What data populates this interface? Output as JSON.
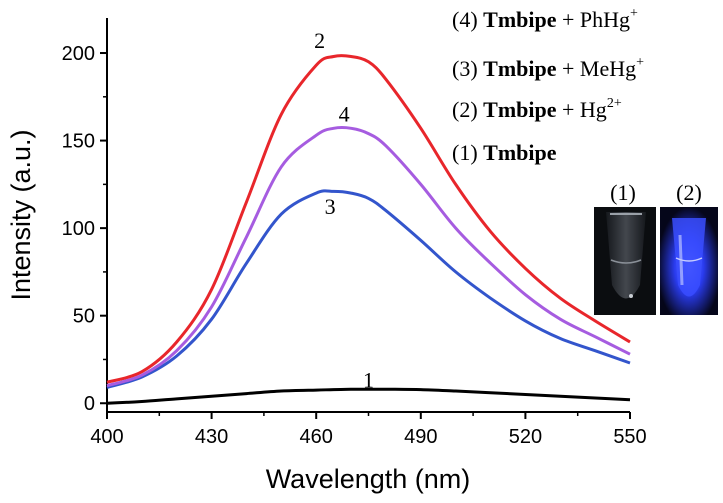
{
  "chart_data": {
    "type": "line",
    "title": "",
    "xlabel": "Wavelength (nm)",
    "ylabel": "Intensity (a.u.)",
    "xlim": [
      400,
      550
    ],
    "ylim": [
      -5,
      220
    ],
    "xticks": [
      400,
      430,
      460,
      490,
      520,
      550
    ],
    "yticks": [
      0,
      50,
      100,
      150,
      200
    ],
    "grid": false,
    "legend_position": "top-right",
    "x": [
      400,
      410,
      420,
      430,
      440,
      450,
      460,
      465,
      470,
      475,
      480,
      490,
      500,
      510,
      520,
      530,
      540,
      550
    ],
    "series": [
      {
        "name": "1",
        "legend": "Tmbipe",
        "color": "#000000",
        "values": [
          0,
          1,
          2.5,
          4,
          5.5,
          7,
          7.5,
          7.8,
          8,
          8,
          8,
          7.8,
          7,
          6,
          5,
          4,
          3,
          2
        ]
      },
      {
        "name": "2",
        "legend": "Tmbipe + Hg2+",
        "color": "#e8262b",
        "values": [
          12,
          18,
          35,
          65,
          115,
          165,
          193,
          198,
          198,
          195,
          185,
          157,
          125,
          98,
          77,
          60,
          47,
          35
        ]
      },
      {
        "name": "3",
        "legend": "Tmbipe + MeHg+",
        "color": "#3355cc",
        "values": [
          9,
          15,
          27,
          48,
          80,
          108,
          120,
          121,
          120,
          117,
          110,
          93,
          75,
          60,
          47,
          37,
          30,
          23
        ]
      },
      {
        "name": "4",
        "legend": "Tmbipe + PhHg+",
        "color": "#a65ce0",
        "values": [
          10,
          16,
          30,
          55,
          95,
          135,
          153,
          157,
          157,
          154,
          147,
          125,
          100,
          80,
          62,
          48,
          38,
          28
        ]
      }
    ],
    "curve_labels": [
      {
        "text": "1",
        "x": 475,
        "y": 9
      },
      {
        "text": "2",
        "x": 461,
        "y": 203
      },
      {
        "text": "3",
        "x": 464,
        "y": 108
      },
      {
        "text": "4",
        "x": 468,
        "y": 161
      }
    ]
  },
  "legend": {
    "items": [
      {
        "num": "(4)",
        "name": "Tmbipe",
        "rest": " + PhHg",
        "sup": "+"
      },
      {
        "num": "(3)",
        "name": "Tmbipe",
        "rest": " + MeHg",
        "sup": "+"
      },
      {
        "num": "(2)",
        "name": "Tmbipe",
        "rest": " + Hg",
        "sup": "2+"
      },
      {
        "num": "(1)",
        "name": "Tmbipe",
        "rest": "",
        "sup": ""
      }
    ]
  },
  "photos": {
    "labels": [
      "(1)",
      "(2)"
    ]
  }
}
